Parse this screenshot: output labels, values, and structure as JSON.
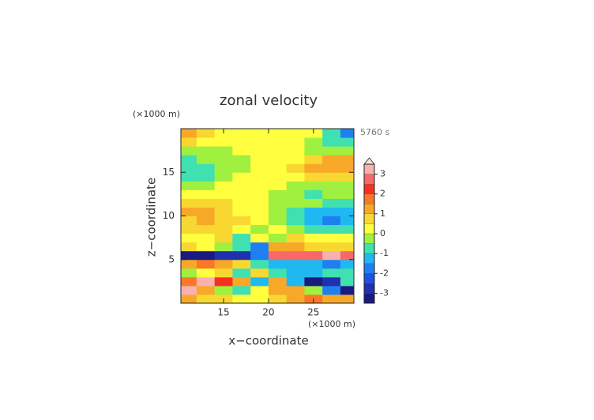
{
  "chart_data": {
    "type": "heatmap",
    "title": "zonal velocity",
    "xlabel": "x−coordinate",
    "ylabel": "z−coordinate",
    "xunit": "(×1000 m)",
    "yunit": "(×1000 m)",
    "time_label": "5760 s",
    "xlim": [
      10.25,
      29.5
    ],
    "ylim": [
      0,
      20
    ],
    "xticks": [
      15,
      20,
      25
    ],
    "yticks": [
      5,
      10,
      15
    ],
    "x": [
      11,
      13,
      15,
      17,
      19,
      21,
      23,
      25,
      27,
      29
    ],
    "z": [
      0.5,
      1.5,
      2.5,
      3.5,
      4.5,
      5.5,
      6.5,
      7.5,
      8.5,
      9.5,
      10.5,
      11.5,
      12.5,
      13.5,
      14.5,
      15.5,
      16.5,
      17.5,
      18.5,
      19.5
    ],
    "values": [
      [
        1.0,
        0.6,
        0.7,
        0.4,
        0.4,
        0.6,
        1.3,
        1.5,
        1.1,
        1.3
      ],
      [
        3.4,
        1.4,
        -0.4,
        -0.8,
        0.2,
        1.4,
        1.3,
        -0.4,
        -1.8,
        -3.4
      ],
      [
        1.8,
        3.2,
        2.2,
        1.0,
        -1.2,
        1.1,
        -1.5,
        -3.3,
        -2.6,
        -0.8
      ],
      [
        -0.5,
        0.4,
        0.8,
        -0.8,
        0.5,
        -0.7,
        -1.3,
        -1.2,
        -0.8,
        -0.6
      ],
      [
        1.2,
        1.6,
        1.4,
        0.8,
        -0.6,
        -1.2,
        -1.4,
        -1.5,
        -1.6,
        -1.4
      ],
      [
        -3.2,
        -3.2,
        -3.0,
        -2.6,
        -1.8,
        2.8,
        2.6,
        2.5,
        3.1,
        2.6
      ],
      [
        0.5,
        0.4,
        -0.3,
        -0.9,
        -1.6,
        1.3,
        1.0,
        0.8,
        0.6,
        0.6
      ],
      [
        0.3,
        0.3,
        0.6,
        -0.6,
        0.3,
        -0.4,
        0.5,
        0.3,
        0.2,
        0.3
      ],
      [
        0.6,
        0.8,
        0.9,
        0.4,
        -0.3,
        0.2,
        -0.3,
        -0.6,
        -0.8,
        -0.6
      ],
      [
        0.9,
        1.2,
        0.9,
        0.5,
        0.0,
        -0.4,
        -0.8,
        -1.4,
        -1.8,
        -1.3
      ],
      [
        1.2,
        1.1,
        0.8,
        0.4,
        0.1,
        -0.3,
        -0.6,
        -1.1,
        -1.3,
        -1.2
      ],
      [
        0.7,
        0.7,
        0.5,
        0.3,
        0.1,
        -0.2,
        -0.3,
        -0.5,
        -0.8,
        -0.9
      ],
      [
        0.3,
        0.4,
        0.3,
        0.3,
        0.2,
        -0.3,
        -0.5,
        -0.6,
        -0.5,
        -0.4
      ],
      [
        -0.5,
        -0.2,
        0.2,
        0.3,
        0.3,
        0.2,
        -0.2,
        -0.4,
        -0.3,
        -0.2
      ],
      [
        -0.8,
        -0.6,
        -0.3,
        0.1,
        0.3,
        0.3,
        0.4,
        0.6,
        0.7,
        0.6
      ],
      [
        -0.9,
        -0.6,
        -0.4,
        -0.2,
        0.2,
        0.3,
        0.5,
        1.1,
        1.4,
        1.1
      ],
      [
        -0.8,
        -0.4,
        -0.3,
        -0.2,
        0.2,
        0.3,
        0.4,
        0.8,
        1.2,
        1.0
      ],
      [
        -0.3,
        -0.3,
        -0.2,
        0.1,
        0.3,
        0.3,
        0.2,
        -0.3,
        -0.4,
        -0.4
      ],
      [
        0.6,
        0.3,
        0.2,
        0.2,
        0.3,
        0.2,
        0.1,
        -0.2,
        -0.6,
        -0.8
      ],
      [
        1.2,
        0.6,
        0.3,
        0.3,
        0.3,
        0.2,
        0.2,
        0.1,
        -0.8,
        -1.6
      ]
    ],
    "colorbar": {
      "levels": [
        -3.5,
        -3,
        -2.5,
        -2,
        -1.5,
        -1,
        -0.5,
        0,
        0.5,
        1,
        1.5,
        2,
        2.5,
        3,
        3.5
      ],
      "colors": [
        "#1a1a80",
        "#2030b0",
        "#2050e0",
        "#1e80f0",
        "#20b8f0",
        "#40e0b0",
        "#a0f040",
        "#ffff40",
        "#f8d830",
        "#f8a828",
        "#f87828",
        "#f83020",
        "#f86868",
        "#f8b0b0"
      ],
      "ticks": [
        -3,
        -2,
        -1,
        0,
        1,
        2,
        3
      ],
      "extend": "max",
      "extend_color": "#fbe0e0"
    }
  }
}
